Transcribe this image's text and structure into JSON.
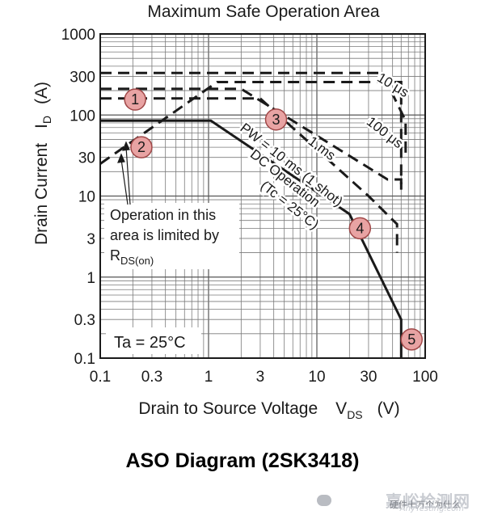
{
  "chart_data": {
    "type": "line",
    "title": "Maximum Safe Operation Area",
    "ylabel": "Drain Current",
    "ylabel_symbol": "I",
    "ylabel_subscript": "D",
    "ylabel_unit": "(A)",
    "xlabel": "Drain to Source Voltage",
    "xlabel_symbol": "V",
    "xlabel_subscript": "DS",
    "xlabel_unit": "(V)",
    "xscale": "log",
    "yscale": "log",
    "xlim": [
      0.1,
      100
    ],
    "ylim": [
      0.1,
      1000
    ],
    "grid": true,
    "x_ticks": [
      {
        "value": 0.1,
        "label": "0.1"
      },
      {
        "value": 0.3,
        "label": "0.3"
      },
      {
        "value": 1,
        "label": "1"
      },
      {
        "value": 3,
        "label": "3"
      },
      {
        "value": 10,
        "label": "10"
      },
      {
        "value": 30,
        "label": "30"
      },
      {
        "value": 100,
        "label": "100"
      }
    ],
    "y_ticks": [
      {
        "value": 0.1,
        "label": "0.1"
      },
      {
        "value": 0.3,
        "label": "0.3"
      },
      {
        "value": 1,
        "label": "1"
      },
      {
        "value": 3,
        "label": "3"
      },
      {
        "value": 10,
        "label": "10"
      },
      {
        "value": 30,
        "label": "30"
      },
      {
        "value": 100,
        "label": "100"
      },
      {
        "value": 300,
        "label": "300"
      },
      {
        "value": 1000,
        "label": "1000"
      }
    ],
    "series": [
      {
        "style": "dashed",
        "points": [
          [
            0.1,
            25
          ],
          [
            1.2,
            255
          ],
          [
            60,
            255
          ],
          [
            60,
            12
          ]
        ]
      },
      {
        "style": "dashed",
        "points": [
          [
            0.1,
            160
          ],
          [
            3.0,
            160
          ],
          [
            30,
            10
          ],
          [
            55,
            4.5
          ],
          [
            55,
            2.0
          ]
        ]
      },
      {
        "style": "dashed",
        "points": [
          [
            0.1,
            210
          ],
          [
            2.0,
            210
          ],
          [
            45,
            16
          ],
          [
            60,
            16
          ],
          [
            60,
            12
          ]
        ]
      },
      {
        "style": "dashed",
        "points": [
          [
            0.1,
            330
          ],
          [
            40,
            330
          ],
          [
            66,
            85
          ],
          [
            66,
            30
          ]
        ]
      },
      {
        "style": "solid",
        "points": [
          [
            0.1,
            85
          ],
          [
            1.05,
            85
          ],
          [
            20,
            6
          ],
          [
            60,
            0.3
          ],
          [
            60,
            0.1
          ]
        ]
      }
    ],
    "annotations": [
      {
        "text": "10 μs",
        "x": 48,
        "y": 210,
        "angle": 31
      },
      {
        "text": "100 μs",
        "x": 40,
        "y": 55,
        "angle": 38
      },
      {
        "text": "1 ms",
        "x": 10.5,
        "y": 35,
        "angle": 37
      },
      {
        "text": "PW = 10 ms (1 shot)",
        "x": 5.5,
        "y": 22,
        "angle": 38
      },
      {
        "text": "DC Operation",
        "x": 4.8,
        "y": 15,
        "angle": 38
      },
      {
        "text": "(Tc = 25°C)",
        "x": 5.3,
        "y": 7,
        "angle": 38
      }
    ],
    "markers": [
      {
        "label": "1",
        "x": 0.21,
        "y": 155
      },
      {
        "label": "2",
        "x": 0.24,
        "y": 40
      },
      {
        "label": "3",
        "x": 4.2,
        "y": 88
      },
      {
        "label": "4",
        "x": 25,
        "y": 4
      },
      {
        "label": "5",
        "x": 75,
        "y": 0.17
      }
    ],
    "note": {
      "lines": [
        "Operation in this",
        "area is limited by"
      ],
      "symbol": "R",
      "subscript": "DS(on)"
    },
    "condition": "Ta = 25°C"
  },
  "caption": "ASO Diagram (2SK3418)",
  "watermark": {
    "logo": "嘉峪检测网",
    "user": "硬件十万个为什么",
    "url": "AnyTesting.com"
  },
  "colors": {
    "line": "#1a1a1a",
    "grid": "#7a7a7a",
    "marker_fill": "#e8a3a3",
    "marker_stroke": "#a04848"
  }
}
